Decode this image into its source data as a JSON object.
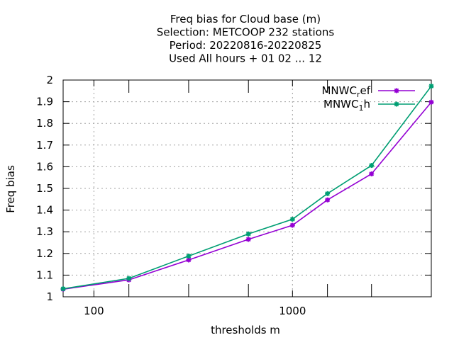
{
  "chart_data": {
    "type": "line",
    "title_lines": [
      "Freq bias  for Cloud base (m)",
      "Selection: METCOOP    232 stations",
      "Period: 20220816-20220825",
      "Used  All hours  + 01 02 ... 12"
    ],
    "xlabel": "thresholds m",
    "ylabel": "Freq bias",
    "x_scale": "log",
    "xlim": [
      70,
      5000
    ],
    "ylim": [
      1,
      2
    ],
    "x_tick_labels": [
      {
        "value": 100,
        "label": "100"
      },
      {
        "value": 1000,
        "label": "1000"
      }
    ],
    "x_minor_ticks": [
      150,
      300,
      600,
      1500,
      2500,
      5000
    ],
    "y_ticks": [
      {
        "value": 1.0,
        "label": "1"
      },
      {
        "value": 1.1,
        "label": "1.1"
      },
      {
        "value": 1.2,
        "label": "1.2"
      },
      {
        "value": 1.3,
        "label": "1.3"
      },
      {
        "value": 1.4,
        "label": "1.4"
      },
      {
        "value": 1.5,
        "label": "1.5"
      },
      {
        "value": 1.6,
        "label": "1.6"
      },
      {
        "value": 1.7,
        "label": "1.7"
      },
      {
        "value": 1.8,
        "label": "1.8"
      },
      {
        "value": 1.9,
        "label": "1.9"
      },
      {
        "value": 2.0,
        "label": "2"
      }
    ],
    "grid": true,
    "legend_position": "top-right",
    "x": [
      70,
      150,
      300,
      600,
      1000,
      1500,
      2500,
      5000
    ],
    "series": [
      {
        "name_base": "MNWC",
        "name_sub": "r",
        "name_rest": "ef",
        "color": "#9400d3",
        "values": [
          1.035,
          1.078,
          1.17,
          1.265,
          1.33,
          1.447,
          1.567,
          1.898
        ]
      },
      {
        "name_base": "MNWC",
        "name_sub": "1",
        "name_rest": "h",
        "color": "#009e73",
        "values": [
          1.037,
          1.085,
          1.188,
          1.29,
          1.358,
          1.476,
          1.606,
          1.972
        ]
      }
    ]
  }
}
